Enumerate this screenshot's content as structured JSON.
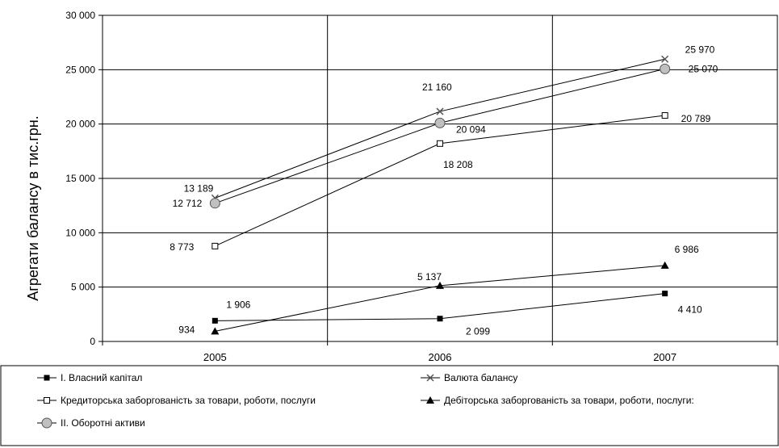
{
  "chart_data": {
    "type": "line",
    "title": "",
    "xlabel": "",
    "ylabel": "Агрегати балансу в тис.грн.",
    "categories": [
      "2005",
      "2006",
      "2007"
    ],
    "ylim": [
      0,
      30000
    ],
    "yticks": [
      0,
      5000,
      10000,
      15000,
      20000,
      25000,
      30000
    ],
    "ytick_labels": [
      "0",
      "5 000",
      "10 000",
      "15 000",
      "20 000",
      "25 000",
      "30 000"
    ],
    "grid": "major",
    "legend_position": "bottom",
    "series": [
      {
        "name": "I. Власний капітал",
        "marker": "square-filled",
        "values": [
          1906,
          2099,
          4410
        ],
        "labels": [
          "1 906",
          "2 099",
          "4 410"
        ]
      },
      {
        "name": "Валюта балансу",
        "marker": "x",
        "values": [
          13189,
          21160,
          25970
        ],
        "labels": [
          "13 189",
          "21 160",
          "25 970"
        ]
      },
      {
        "name": "Кредиторська заборгованість за товари, роботи, послуги",
        "marker": "square-open",
        "values": [
          8773,
          18208,
          20789
        ],
        "labels": [
          "8 773",
          "18 208",
          "20 789"
        ]
      },
      {
        "name": "Дебіторська заборгованість за товари, роботи, послуги:",
        "marker": "triangle-filled",
        "values": [
          934,
          5137,
          6986
        ],
        "labels": [
          "934",
          "5 137",
          "6 986"
        ]
      },
      {
        "name": "II. Оборотні активи",
        "marker": "circle-gray",
        "values": [
          12712,
          20094,
          25070
        ],
        "labels": [
          "12 712",
          "20 094",
          "25 070"
        ]
      }
    ],
    "colors": {
      "line": "#000000",
      "grid": "#000000",
      "marker_gray": "#c0c0c0"
    }
  }
}
